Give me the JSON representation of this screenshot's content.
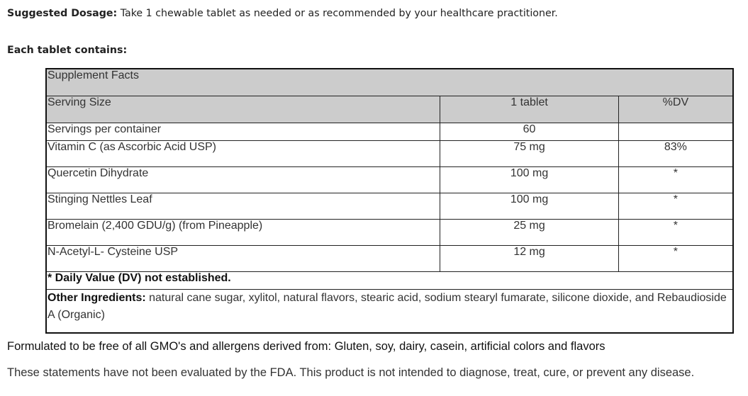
{
  "dosage": {
    "label": "Suggested Dosage:",
    "text": " Take 1 chewable tablet as needed or as recommended by your healthcare practitioner."
  },
  "each_tablet": "Each tablet contains:",
  "facts": {
    "title": "Supplement Facts",
    "header": {
      "col1": "Serving Size",
      "col2": "1 tablet",
      "col3": "%DV"
    },
    "servings": {
      "name": "Servings per container",
      "amount": "60",
      "dv": ""
    },
    "rows": [
      {
        "name": "Vitamin C (as Ascorbic Acid USP)",
        "amount": "75 mg",
        "dv": "83%"
      },
      {
        "name": "Quercetin Dihydrate",
        "amount": "100 mg",
        "dv": "*"
      },
      {
        "name": "Stinging Nettles Leaf",
        "amount": "100 mg",
        "dv": "*"
      },
      {
        "name": "Bromelain (2,400 GDU/g) (from Pineapple)",
        "amount": "25 mg",
        "dv": "*"
      },
      {
        "name": "N-Acetyl-L- Cysteine USP",
        "amount": "12 mg",
        "dv": "*"
      }
    ],
    "dv_note": "* Daily Value (DV) not established.",
    "other_label": "Other Ingredients:",
    "other_text": " natural cane sugar, xylitol, natural flavors, stearic acid, sodium stearyl fumarate, silicone dioxide, and Rebaudioside A (Organic)"
  },
  "gmo_statement": "Formulated to be free of all GMO's and allergens derived from: Gluten, soy, dairy, casein, artificial colors and flavors",
  "fda_statement": "These statements have not been evaluated by the FDA. This product is not intended to diagnose, treat, cure, or prevent any disease."
}
